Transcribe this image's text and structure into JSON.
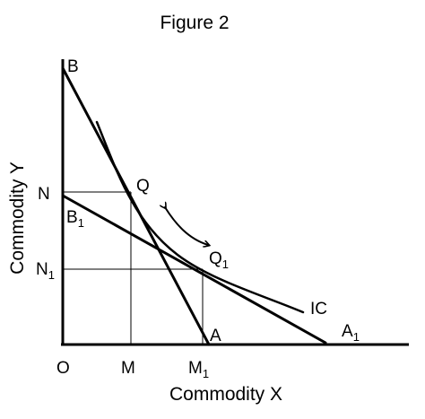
{
  "title": "Figure 2",
  "axes": {
    "x_label": "Commodity X",
    "y_label": "Commodity Y",
    "origin": "O"
  },
  "x_ticks": {
    "m": "M",
    "m1_base": "M",
    "m1_sub": "1"
  },
  "y_ticks": {
    "n": "N",
    "n1_base": "N",
    "n1_sub": "1"
  },
  "points": {
    "b": "B",
    "a": "A",
    "b1_base": "B",
    "b1_sub": "1",
    "a1_base": "A",
    "a1_sub": "1",
    "q": "Q",
    "q1_base": "Q",
    "q1_sub": "1"
  },
  "curve_label": "IC",
  "colors": {
    "ink": "#000000",
    "background": "#ffffff"
  }
}
